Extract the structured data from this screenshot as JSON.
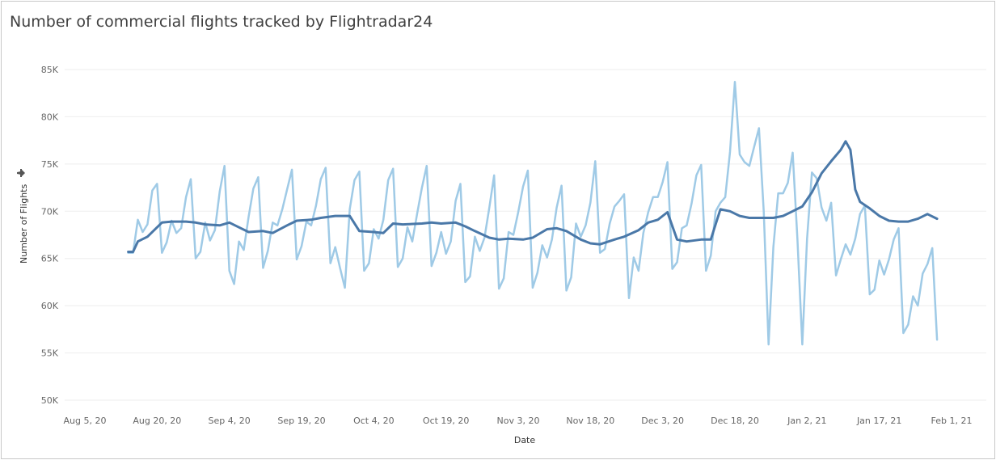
{
  "title": "Number of commercial flights tracked by Flightradar24",
  "colors": {
    "daily": "#9fcae6",
    "average": "#4a78a8",
    "grid": "#eeeeee",
    "axis_text": "#666666"
  },
  "chart_data": {
    "type": "line",
    "title": "Number of commercial flights tracked by Flightradar24",
    "xlabel": "Date",
    "ylabel": "Number of Flights",
    "x_start": "2020-08-05",
    "x_end": "2021-02-01",
    "ylim": [
      50000,
      85000
    ],
    "yticks": [
      {
        "value": 50000,
        "label": "50K"
      },
      {
        "value": 55000,
        "label": "55K"
      },
      {
        "value": 60000,
        "label": "60K"
      },
      {
        "value": 65000,
        "label": "65K"
      },
      {
        "value": 70000,
        "label": "70K"
      },
      {
        "value": 75000,
        "label": "75K"
      },
      {
        "value": 80000,
        "label": "80K"
      },
      {
        "value": 85000,
        "label": "85K"
      }
    ],
    "xticks": [
      {
        "date": "2020-08-05",
        "label": "Aug 5, 20"
      },
      {
        "date": "2020-08-20",
        "label": "Aug 20, 20"
      },
      {
        "date": "2020-09-04",
        "label": "Sep 4, 20"
      },
      {
        "date": "2020-09-19",
        "label": "Sep 19, 20"
      },
      {
        "date": "2020-10-04",
        "label": "Oct 4, 20"
      },
      {
        "date": "2020-10-19",
        "label": "Oct 19, 20"
      },
      {
        "date": "2020-11-03",
        "label": "Nov 3, 20"
      },
      {
        "date": "2020-11-18",
        "label": "Nov 18, 20"
      },
      {
        "date": "2020-12-03",
        "label": "Dec 3, 20"
      },
      {
        "date": "2020-12-18",
        "label": "Dec 18, 20"
      },
      {
        "date": "2021-01-02",
        "label": "Jan 2, 21"
      },
      {
        "date": "2021-01-17",
        "label": "Jan 17, 21"
      },
      {
        "date": "2021-02-01",
        "label": "Feb 1, 21"
      }
    ],
    "series": [
      {
        "key": "daily",
        "color": "#9fcae6",
        "points": [
          [
            "2020-08-14",
            65600
          ],
          [
            "2020-08-15",
            65600
          ],
          [
            "2020-08-16",
            69100
          ],
          [
            "2020-08-17",
            67800
          ],
          [
            "2020-08-18",
            68600
          ],
          [
            "2020-08-19",
            72200
          ],
          [
            "2020-08-20",
            72900
          ],
          [
            "2020-08-21",
            65600
          ],
          [
            "2020-08-22",
            66700
          ],
          [
            "2020-08-23",
            69000
          ],
          [
            "2020-08-24",
            67700
          ],
          [
            "2020-08-25",
            68200
          ],
          [
            "2020-08-26",
            71500
          ],
          [
            "2020-08-27",
            73400
          ],
          [
            "2020-08-28",
            65000
          ],
          [
            "2020-08-29",
            65700
          ],
          [
            "2020-08-30",
            68800
          ],
          [
            "2020-08-31",
            66900
          ],
          [
            "2020-09-01",
            68000
          ],
          [
            "2020-09-02",
            72100
          ],
          [
            "2020-09-03",
            74800
          ],
          [
            "2020-09-04",
            63700
          ],
          [
            "2020-09-05",
            62300
          ],
          [
            "2020-09-06",
            66800
          ],
          [
            "2020-09-07",
            65900
          ],
          [
            "2020-09-08",
            69400
          ],
          [
            "2020-09-09",
            72400
          ],
          [
            "2020-09-10",
            73600
          ],
          [
            "2020-09-11",
            64000
          ],
          [
            "2020-09-12",
            65800
          ],
          [
            "2020-09-13",
            68800
          ],
          [
            "2020-09-14",
            68500
          ],
          [
            "2020-09-15",
            70200
          ],
          [
            "2020-09-16",
            72300
          ],
          [
            "2020-09-17",
            74400
          ],
          [
            "2020-09-18",
            64900
          ],
          [
            "2020-09-19",
            66300
          ],
          [
            "2020-09-20",
            68900
          ],
          [
            "2020-09-21",
            68500
          ],
          [
            "2020-09-22",
            70600
          ],
          [
            "2020-09-23",
            73400
          ],
          [
            "2020-09-24",
            74600
          ],
          [
            "2020-09-25",
            64500
          ],
          [
            "2020-09-26",
            66200
          ],
          [
            "2020-09-27",
            64000
          ],
          [
            "2020-09-28",
            61900
          ],
          [
            "2020-09-29",
            70200
          ],
          [
            "2020-09-30",
            73300
          ],
          [
            "2020-10-01",
            74200
          ],
          [
            "2020-10-02",
            63700
          ],
          [
            "2020-10-03",
            64500
          ],
          [
            "2020-10-04",
            68100
          ],
          [
            "2020-10-05",
            67100
          ],
          [
            "2020-10-06",
            69100
          ],
          [
            "2020-10-07",
            73300
          ],
          [
            "2020-10-08",
            74500
          ],
          [
            "2020-10-09",
            64100
          ],
          [
            "2020-10-10",
            65000
          ],
          [
            "2020-10-11",
            68300
          ],
          [
            "2020-10-12",
            66800
          ],
          [
            "2020-10-13",
            69700
          ],
          [
            "2020-10-14",
            72500
          ],
          [
            "2020-10-15",
            74800
          ],
          [
            "2020-10-16",
            64200
          ],
          [
            "2020-10-17",
            65600
          ],
          [
            "2020-10-18",
            67800
          ],
          [
            "2020-10-19",
            65500
          ],
          [
            "2020-10-20",
            66800
          ],
          [
            "2020-10-21",
            71100
          ],
          [
            "2020-10-22",
            72900
          ],
          [
            "2020-10-23",
            62500
          ],
          [
            "2020-10-24",
            63100
          ],
          [
            "2020-10-25",
            67300
          ],
          [
            "2020-10-26",
            65800
          ],
          [
            "2020-10-27",
            67200
          ],
          [
            "2020-10-28",
            70400
          ],
          [
            "2020-10-29",
            73800
          ],
          [
            "2020-10-30",
            61800
          ],
          [
            "2020-10-31",
            62900
          ],
          [
            "2020-11-01",
            67800
          ],
          [
            "2020-11-02",
            67500
          ],
          [
            "2020-11-03",
            69900
          ],
          [
            "2020-11-04",
            72600
          ],
          [
            "2020-11-05",
            74300
          ],
          [
            "2020-11-06",
            61900
          ],
          [
            "2020-11-07",
            63500
          ],
          [
            "2020-11-08",
            66400
          ],
          [
            "2020-11-09",
            65100
          ],
          [
            "2020-11-10",
            67000
          ],
          [
            "2020-11-11",
            70400
          ],
          [
            "2020-11-12",
            72700
          ],
          [
            "2020-11-13",
            61600
          ],
          [
            "2020-11-14",
            63000
          ],
          [
            "2020-11-15",
            68700
          ],
          [
            "2020-11-16",
            67300
          ],
          [
            "2020-11-17",
            68500
          ],
          [
            "2020-11-18",
            70900
          ],
          [
            "2020-11-19",
            75300
          ],
          [
            "2020-11-20",
            65600
          ],
          [
            "2020-11-21",
            66000
          ],
          [
            "2020-11-22",
            68700
          ],
          [
            "2020-11-23",
            70500
          ],
          [
            "2020-11-24",
            71100
          ],
          [
            "2020-11-25",
            71800
          ],
          [
            "2020-11-26",
            60800
          ],
          [
            "2020-11-27",
            65100
          ],
          [
            "2020-11-28",
            63700
          ],
          [
            "2020-11-29",
            67700
          ],
          [
            "2020-11-30",
            69900
          ],
          [
            "2020-12-01",
            71500
          ],
          [
            "2020-12-02",
            71500
          ],
          [
            "2020-12-03",
            73100
          ],
          [
            "2020-12-04",
            75200
          ],
          [
            "2020-12-05",
            63900
          ],
          [
            "2020-12-06",
            64600
          ],
          [
            "2020-12-07",
            68200
          ],
          [
            "2020-12-08",
            68500
          ],
          [
            "2020-12-09",
            70800
          ],
          [
            "2020-12-10",
            73800
          ],
          [
            "2020-12-11",
            74900
          ],
          [
            "2020-12-12",
            63700
          ],
          [
            "2020-12-13",
            65300
          ],
          [
            "2020-12-14",
            70000
          ],
          [
            "2020-12-15",
            70900
          ],
          [
            "2020-12-16",
            71500
          ],
          [
            "2020-12-17",
            76300
          ],
          [
            "2020-12-18",
            83700
          ],
          [
            "2020-12-19",
            76000
          ],
          [
            "2020-12-20",
            75200
          ],
          [
            "2020-12-21",
            74800
          ],
          [
            "2020-12-22",
            76800
          ],
          [
            "2020-12-23",
            78800
          ],
          [
            "2020-12-24",
            70000
          ],
          [
            "2020-12-25",
            55900
          ],
          [
            "2020-12-26",
            66200
          ],
          [
            "2020-12-27",
            71900
          ],
          [
            "2020-12-28",
            71900
          ],
          [
            "2020-12-29",
            73000
          ],
          [
            "2020-12-30",
            76200
          ],
          [
            "2020-12-31",
            67000
          ],
          [
            "2021-01-01",
            55900
          ],
          [
            "2021-01-02",
            67100
          ],
          [
            "2021-01-03",
            74100
          ],
          [
            "2021-01-04",
            73500
          ],
          [
            "2021-01-05",
            70400
          ],
          [
            "2021-01-06",
            69000
          ],
          [
            "2021-01-07",
            70900
          ],
          [
            "2021-01-08",
            63200
          ],
          [
            "2021-01-09",
            64900
          ],
          [
            "2021-01-10",
            66500
          ],
          [
            "2021-01-11",
            65400
          ],
          [
            "2021-01-12",
            67100
          ],
          [
            "2021-01-13",
            69700
          ],
          [
            "2021-01-14",
            70600
          ],
          [
            "2021-01-15",
            61200
          ],
          [
            "2021-01-16",
            61700
          ],
          [
            "2021-01-17",
            64800
          ],
          [
            "2021-01-18",
            63300
          ],
          [
            "2021-01-19",
            64900
          ],
          [
            "2021-01-20",
            67000
          ],
          [
            "2021-01-21",
            68200
          ],
          [
            "2021-01-22",
            57100
          ],
          [
            "2021-01-23",
            58000
          ],
          [
            "2021-01-24",
            61000
          ],
          [
            "2021-01-25",
            60000
          ],
          [
            "2021-01-26",
            63400
          ],
          [
            "2021-01-27",
            64400
          ],
          [
            "2021-01-28",
            66100
          ],
          [
            "2021-01-29",
            56400
          ]
        ]
      },
      {
        "key": "seven_day_average",
        "color": "#4a78a8",
        "points": [
          [
            "2020-08-14",
            65700
          ],
          [
            "2020-08-15",
            65700
          ],
          [
            "2020-08-16",
            66800
          ],
          [
            "2020-08-18",
            67300
          ],
          [
            "2020-08-21",
            68800
          ],
          [
            "2020-08-23",
            68900
          ],
          [
            "2020-08-26",
            68900
          ],
          [
            "2020-08-28",
            68800
          ],
          [
            "2020-08-30",
            68600
          ],
          [
            "2020-09-02",
            68500
          ],
          [
            "2020-09-04",
            68800
          ],
          [
            "2020-09-06",
            68300
          ],
          [
            "2020-09-08",
            67800
          ],
          [
            "2020-09-11",
            67900
          ],
          [
            "2020-09-13",
            67700
          ],
          [
            "2020-09-16",
            68500
          ],
          [
            "2020-09-18",
            69000
          ],
          [
            "2020-09-21",
            69100
          ],
          [
            "2020-09-23",
            69300
          ],
          [
            "2020-09-26",
            69500
          ],
          [
            "2020-09-29",
            69500
          ],
          [
            "2020-10-01",
            67900
          ],
          [
            "2020-10-04",
            67800
          ],
          [
            "2020-10-06",
            67700
          ],
          [
            "2020-10-08",
            68700
          ],
          [
            "2020-10-10",
            68600
          ],
          [
            "2020-10-14",
            68700
          ],
          [
            "2020-10-16",
            68800
          ],
          [
            "2020-10-18",
            68700
          ],
          [
            "2020-10-21",
            68800
          ],
          [
            "2020-10-23",
            68400
          ],
          [
            "2020-10-25",
            67900
          ],
          [
            "2020-10-28",
            67200
          ],
          [
            "2020-10-30",
            67000
          ],
          [
            "2020-11-01",
            67100
          ],
          [
            "2020-11-04",
            67000
          ],
          [
            "2020-11-06",
            67200
          ],
          [
            "2020-11-09",
            68100
          ],
          [
            "2020-11-11",
            68200
          ],
          [
            "2020-11-13",
            67900
          ],
          [
            "2020-11-16",
            67000
          ],
          [
            "2020-11-18",
            66600
          ],
          [
            "2020-11-20",
            66500
          ],
          [
            "2020-11-23",
            67000
          ],
          [
            "2020-11-25",
            67300
          ],
          [
            "2020-11-28",
            68000
          ],
          [
            "2020-11-30",
            68800
          ],
          [
            "2020-12-02",
            69100
          ],
          [
            "2020-12-04",
            69900
          ],
          [
            "2020-12-06",
            67000
          ],
          [
            "2020-12-08",
            66800
          ],
          [
            "2020-12-11",
            67000
          ],
          [
            "2020-12-13",
            67000
          ],
          [
            "2020-12-15",
            70200
          ],
          [
            "2020-12-17",
            70000
          ],
          [
            "2020-12-19",
            69500
          ],
          [
            "2020-12-21",
            69300
          ],
          [
            "2020-12-24",
            69300
          ],
          [
            "2020-12-26",
            69300
          ],
          [
            "2020-12-28",
            69500
          ],
          [
            "2020-12-30",
            70000
          ],
          [
            "2021-01-01",
            70500
          ],
          [
            "2021-01-03",
            72000
          ],
          [
            "2021-01-05",
            74000
          ],
          [
            "2021-01-07",
            75300
          ],
          [
            "2021-01-09",
            76500
          ],
          [
            "2021-01-10",
            77400
          ],
          [
            "2021-01-11",
            76500
          ],
          [
            "2021-01-12",
            72300
          ],
          [
            "2021-01-13",
            71000
          ],
          [
            "2021-01-15",
            70300
          ],
          [
            "2021-01-17",
            69500
          ],
          [
            "2021-01-19",
            69000
          ],
          [
            "2021-01-21",
            68900
          ],
          [
            "2021-01-23",
            68900
          ],
          [
            "2021-01-25",
            69200
          ],
          [
            "2021-01-27",
            69700
          ],
          [
            "2021-01-29",
            69200
          ]
        ]
      }
    ]
  }
}
